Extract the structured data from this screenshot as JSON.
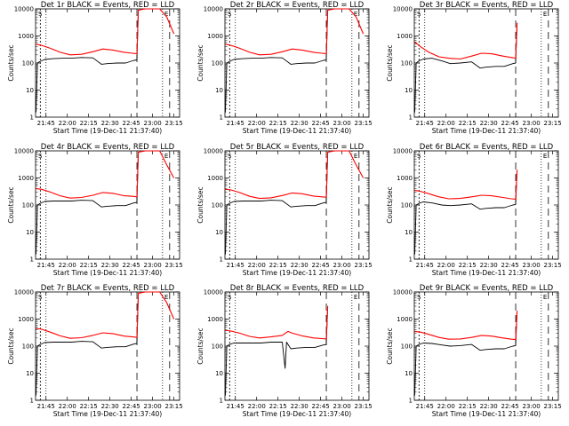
{
  "chart_data": [
    {
      "type": "line",
      "title": "Det 1r BLACK = Events, RED = LLD",
      "xlabel": "Start Time (19-Dec-11 21:37:40)",
      "ylabel": "Counts/sec",
      "yscale": "log",
      "ylim": [
        1,
        10000
      ],
      "x_ticks": [
        "21:45",
        "22:00",
        "22:15",
        "22:30",
        "22:45",
        "23:00",
        "23:15"
      ],
      "y_ticks": [
        "1",
        "10",
        "100",
        "1000",
        "10000"
      ],
      "markers": [
        "S",
        "E"
      ],
      "series": [
        {
          "color": "#000000",
          "x": [
            "21:38",
            "21:39",
            "21:41",
            "21:44",
            "21:50",
            "21:57",
            "22:03",
            "22:10",
            "22:18",
            "22:24",
            "22:28",
            "22:35",
            "22:41",
            "22:47",
            "22:49",
            "22:50"
          ],
          "values": [
            1.5,
            100,
            115,
            135,
            145,
            150,
            150,
            160,
            155,
            90,
            95,
            100,
            100,
            125,
            130,
            9000
          ]
        },
        {
          "color": "#ff0000",
          "x": [
            "21:38",
            "21:42",
            "21:48",
            "21:55",
            "22:02",
            "22:10",
            "22:18",
            "22:25",
            "22:32",
            "22:40",
            "22:46",
            "22:49",
            "22:50",
            "22:55",
            "23:05",
            "23:10",
            "23:15"
          ],
          "values": [
            500,
            450,
            350,
            250,
            200,
            210,
            260,
            330,
            300,
            250,
            230,
            220,
            9000,
            10000,
            10000,
            5000,
            1200
          ]
        }
      ]
    },
    {
      "type": "line",
      "title": "Det 2r BLACK = Events, RED = LLD",
      "xlabel": "Start Time (19-Dec-11 21:37:40)",
      "ylabel": "Counts/sec",
      "yscale": "log",
      "ylim": [
        1,
        10000
      ],
      "x_ticks": [
        "21:45",
        "22:00",
        "22:15",
        "22:30",
        "22:45",
        "23:00",
        "23:15"
      ],
      "y_ticks": [
        "1",
        "10",
        "100",
        "1000",
        "10000"
      ],
      "markers": [
        "S",
        "E"
      ],
      "series": [
        {
          "color": "#000000",
          "x": [
            "21:38",
            "21:39",
            "21:41",
            "21:44",
            "21:50",
            "21:57",
            "22:03",
            "22:10",
            "22:18",
            "22:24",
            "22:28",
            "22:35",
            "22:41",
            "22:47",
            "22:49",
            "22:50"
          ],
          "values": [
            1.5,
            100,
            115,
            135,
            145,
            150,
            150,
            160,
            155,
            90,
            95,
            100,
            100,
            125,
            130,
            9000
          ]
        },
        {
          "color": "#ff0000",
          "x": [
            "21:38",
            "21:42",
            "21:48",
            "21:55",
            "22:02",
            "22:10",
            "22:18",
            "22:25",
            "22:32",
            "22:40",
            "22:46",
            "22:49",
            "22:50",
            "22:55",
            "23:05",
            "23:10",
            "23:15"
          ],
          "values": [
            500,
            450,
            350,
            250,
            200,
            210,
            260,
            330,
            300,
            250,
            230,
            220,
            9000,
            10000,
            10000,
            5000,
            1200
          ]
        }
      ]
    },
    {
      "type": "line",
      "title": "Det 3r BLACK = Events, RED = LLD",
      "xlabel": "Start Time (19-Dec-11 21:37:40)",
      "ylabel": "Counts/sec",
      "yscale": "log",
      "ylim": [
        1,
        10000
      ],
      "x_ticks": [
        "21:45",
        "22:00",
        "22:15",
        "22:30",
        "22:45",
        "23:00",
        "23:15"
      ],
      "y_ticks": [
        "1",
        "10",
        "100",
        "1000",
        "10000"
      ],
      "markers": [
        "S",
        "E"
      ],
      "series": [
        {
          "color": "#000000",
          "x": [
            "21:38",
            "21:39",
            "21:41",
            "21:44",
            "21:50",
            "21:57",
            "22:03",
            "22:10",
            "22:18",
            "22:24",
            "22:28",
            "22:35",
            "22:41",
            "22:47",
            "22:49",
            "22:50"
          ],
          "values": [
            1.5,
            100,
            120,
            140,
            150,
            120,
            95,
            100,
            110,
            65,
            70,
            75,
            75,
            95,
            100,
            3000
          ]
        },
        {
          "color": "#ff0000",
          "x": [
            "21:38",
            "21:42",
            "21:48",
            "21:55",
            "22:02",
            "22:10",
            "22:18",
            "22:25",
            "22:32",
            "22:40",
            "22:46",
            "22:49",
            "22:50"
          ],
          "values": [
            600,
            400,
            250,
            170,
            150,
            140,
            180,
            230,
            220,
            180,
            160,
            150,
            3000
          ]
        }
      ]
    },
    {
      "type": "line",
      "title": "Det 4r BLACK = Events, RED = LLD",
      "xlabel": "Start Time (19-Dec-11 21:37:40)",
      "ylabel": "Counts/sec",
      "yscale": "log",
      "ylim": [
        1,
        10000
      ],
      "x_ticks": [
        "21:45",
        "22:00",
        "22:15",
        "22:30",
        "22:45",
        "23:00",
        "23:15"
      ],
      "y_ticks": [
        "1",
        "10",
        "100",
        "1000",
        "10000"
      ],
      "markers": [
        "S",
        "E"
      ],
      "series": [
        {
          "color": "#000000",
          "x": [
            "21:38",
            "21:39",
            "21:41",
            "21:44",
            "21:50",
            "21:57",
            "22:03",
            "22:10",
            "22:18",
            "22:24",
            "22:28",
            "22:35",
            "22:41",
            "22:47",
            "22:49",
            "22:50"
          ],
          "values": [
            1.5,
            100,
            115,
            135,
            140,
            140,
            140,
            150,
            145,
            85,
            90,
            95,
            95,
            120,
            125,
            9000
          ]
        },
        {
          "color": "#ff0000",
          "x": [
            "21:38",
            "21:42",
            "21:48",
            "21:55",
            "22:02",
            "22:10",
            "22:18",
            "22:25",
            "22:32",
            "22:40",
            "22:46",
            "22:49",
            "22:50",
            "22:55",
            "23:05",
            "23:10",
            "23:15"
          ],
          "values": [
            400,
            380,
            300,
            220,
            180,
            190,
            230,
            290,
            270,
            220,
            210,
            200,
            9000,
            10000,
            10000,
            3000,
            1000
          ]
        }
      ]
    },
    {
      "type": "line",
      "title": "Det 5r BLACK = Events, RED = LLD",
      "xlabel": "Start Time (19-Dec-11 21:37:40)",
      "ylabel": "Counts/sec",
      "yscale": "log",
      "ylim": [
        1,
        10000
      ],
      "x_ticks": [
        "21:45",
        "22:00",
        "22:15",
        "22:30",
        "22:45",
        "23:00",
        "23:15"
      ],
      "y_ticks": [
        "1",
        "10",
        "100",
        "1000",
        "10000"
      ],
      "markers": [
        "S",
        "E"
      ],
      "series": [
        {
          "color": "#000000",
          "x": [
            "21:38",
            "21:39",
            "21:41",
            "21:44",
            "21:50",
            "21:57",
            "22:03",
            "22:10",
            "22:18",
            "22:24",
            "22:28",
            "22:35",
            "22:41",
            "22:47",
            "22:49",
            "22:50"
          ],
          "values": [
            1.5,
            100,
            115,
            135,
            140,
            140,
            140,
            150,
            145,
            85,
            90,
            95,
            95,
            120,
            125,
            9000
          ]
        },
        {
          "color": "#ff0000",
          "x": [
            "21:38",
            "21:42",
            "21:48",
            "21:55",
            "22:02",
            "22:10",
            "22:18",
            "22:25",
            "22:32",
            "22:40",
            "22:46",
            "22:49",
            "22:50",
            "22:55",
            "23:05",
            "23:10",
            "23:15"
          ],
          "values": [
            380,
            360,
            290,
            210,
            175,
            185,
            225,
            280,
            260,
            215,
            200,
            195,
            9000,
            10000,
            10000,
            3000,
            1000
          ]
        }
      ]
    },
    {
      "type": "line",
      "title": "Det 6r BLACK = Events, RED = LLD",
      "xlabel": "Start Time (19-Dec-11 21:37:40)",
      "ylabel": "Counts/sec",
      "yscale": "log",
      "ylim": [
        1,
        10000
      ],
      "x_ticks": [
        "21:45",
        "22:00",
        "22:15",
        "22:30",
        "22:45",
        "23:00",
        "23:15"
      ],
      "y_ticks": [
        "1",
        "10",
        "100",
        "1000",
        "10000"
      ],
      "markers": [
        "S",
        "E"
      ],
      "series": [
        {
          "color": "#000000",
          "x": [
            "21:38",
            "21:39",
            "21:41",
            "21:44",
            "21:50",
            "21:57",
            "22:03",
            "22:10",
            "22:18",
            "22:24",
            "22:28",
            "22:35",
            "22:41",
            "22:47",
            "22:49",
            "22:50"
          ],
          "values": [
            1.5,
            100,
            115,
            130,
            120,
            100,
            95,
            100,
            110,
            70,
            75,
            80,
            80,
            100,
            105,
            2000
          ]
        },
        {
          "color": "#ff0000",
          "x": [
            "21:38",
            "21:42",
            "21:48",
            "21:55",
            "22:02",
            "22:10",
            "22:18",
            "22:25",
            "22:32",
            "22:40",
            "22:46",
            "22:49",
            "22:50"
          ],
          "values": [
            350,
            320,
            260,
            200,
            170,
            175,
            200,
            230,
            220,
            190,
            170,
            165,
            2000
          ]
        }
      ]
    },
    {
      "type": "line",
      "title": "Det 7r BLACK = Events, RED = LLD",
      "xlabel": "Start Time (19-Dec-11 21:37:40)",
      "ylabel": "Counts/sec",
      "yscale": "log",
      "ylim": [
        1,
        10000
      ],
      "x_ticks": [
        "21:45",
        "22:00",
        "22:15",
        "22:30",
        "22:45",
        "23:00",
        "23:15"
      ],
      "y_ticks": [
        "1",
        "10",
        "100",
        "1000",
        "10000"
      ],
      "markers": [
        "S",
        "E"
      ],
      "series": [
        {
          "color": "#000000",
          "x": [
            "21:38",
            "21:39",
            "21:41",
            "21:44",
            "21:50",
            "21:57",
            "22:03",
            "22:10",
            "22:18",
            "22:24",
            "22:28",
            "22:35",
            "22:41",
            "22:47",
            "22:49",
            "22:50"
          ],
          "values": [
            1.5,
            100,
            115,
            135,
            140,
            140,
            140,
            150,
            145,
            85,
            90,
            95,
            95,
            120,
            125,
            9000
          ]
        },
        {
          "color": "#ff0000",
          "x": [
            "21:38",
            "21:42",
            "21:48",
            "21:55",
            "22:02",
            "22:10",
            "22:18",
            "22:25",
            "22:32",
            "22:40",
            "22:46",
            "22:49",
            "22:50",
            "22:55",
            "23:05",
            "23:10",
            "23:15"
          ],
          "values": [
            450,
            420,
            330,
            240,
            195,
            205,
            250,
            310,
            290,
            235,
            220,
            210,
            9000,
            10000,
            10000,
            4000,
            1000
          ]
        }
      ]
    },
    {
      "type": "line",
      "title": "Det 8r BLACK = Events, RED = LLD",
      "xlabel": "Start Time (19-Dec-11 21:37:40)",
      "ylabel": "Counts/sec",
      "yscale": "log",
      "ylim": [
        1,
        10000
      ],
      "x_ticks": [
        "21:45",
        "22:00",
        "22:15",
        "22:30",
        "22:45",
        "23:00",
        "23:15"
      ],
      "y_ticks": [
        "1",
        "10",
        "100",
        "1000",
        "10000"
      ],
      "markers": [
        "S",
        "E"
      ],
      "series": [
        {
          "color": "#000000",
          "x": [
            "21:38",
            "21:39",
            "21:41",
            "21:44",
            "21:50",
            "21:57",
            "22:03",
            "22:10",
            "22:18",
            "22:20",
            "22:21",
            "22:24",
            "22:28",
            "22:35",
            "22:41",
            "22:47",
            "22:49",
            "22:50"
          ],
          "values": [
            1.5,
            100,
            115,
            130,
            130,
            130,
            130,
            140,
            140,
            15,
            140,
            80,
            85,
            90,
            90,
            110,
            115,
            3000
          ]
        },
        {
          "color": "#ff0000",
          "x": [
            "21:38",
            "21:42",
            "21:48",
            "21:55",
            "22:02",
            "22:10",
            "22:18",
            "22:22",
            "22:25",
            "22:32",
            "22:40",
            "22:46",
            "22:49",
            "22:50"
          ],
          "values": [
            380,
            360,
            300,
            230,
            200,
            220,
            250,
            350,
            300,
            240,
            200,
            190,
            185,
            3000
          ]
        }
      ]
    },
    {
      "type": "line",
      "title": "Det 9r BLACK = Events, RED = LLD",
      "xlabel": "Start Time (19-Dec-11 21:37:40)",
      "ylabel": "Counts/sec",
      "yscale": "log",
      "ylim": [
        1,
        10000
      ],
      "x_ticks": [
        "21:45",
        "22:00",
        "22:15",
        "22:30",
        "22:45",
        "23:00",
        "23:15"
      ],
      "y_ticks": [
        "1",
        "10",
        "100",
        "1000",
        "10000"
      ],
      "markers": [
        "S",
        "E"
      ],
      "series": [
        {
          "color": "#000000",
          "x": [
            "21:38",
            "21:39",
            "21:41",
            "21:44",
            "21:50",
            "21:57",
            "22:03",
            "22:10",
            "22:18",
            "22:24",
            "22:28",
            "22:35",
            "22:41",
            "22:47",
            "22:49",
            "22:50"
          ],
          "values": [
            1.5,
            100,
            115,
            130,
            125,
            110,
            100,
            105,
            115,
            70,
            75,
            80,
            80,
            100,
            105,
            2000
          ]
        },
        {
          "color": "#ff0000",
          "x": [
            "21:38",
            "21:42",
            "21:48",
            "21:55",
            "22:02",
            "22:10",
            "22:18",
            "22:25",
            "22:32",
            "22:40",
            "22:46",
            "22:49",
            "22:50"
          ],
          "values": [
            350,
            330,
            270,
            210,
            180,
            185,
            210,
            250,
            235,
            200,
            180,
            175,
            2000
          ]
        }
      ]
    }
  ]
}
